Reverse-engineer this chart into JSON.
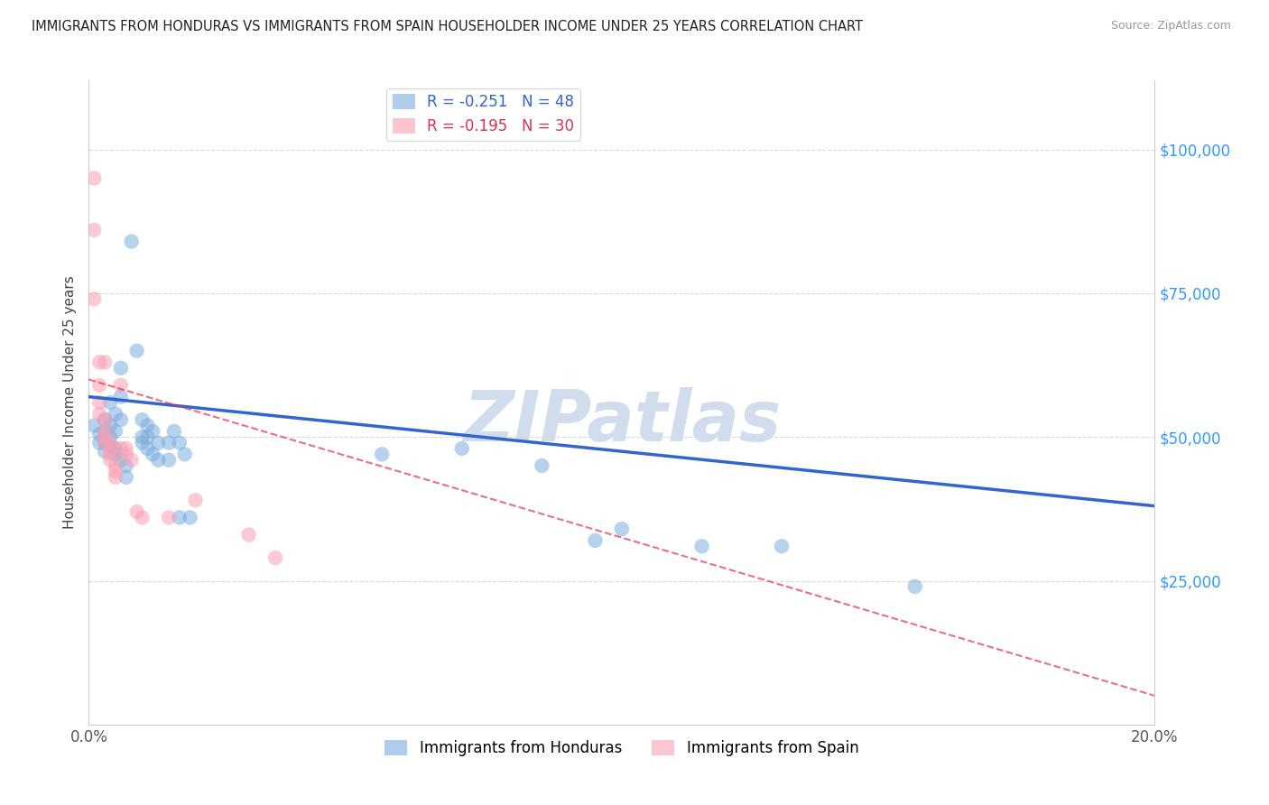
{
  "title": "IMMIGRANTS FROM HONDURAS VS IMMIGRANTS FROM SPAIN HOUSEHOLDER INCOME UNDER 25 YEARS CORRELATION CHART",
  "source": "Source: ZipAtlas.com",
  "ylabel": "Householder Income Under 25 years",
  "xlim": [
    0.0,
    0.2
  ],
  "ylim": [
    0,
    112000
  ],
  "yticks": [
    0,
    25000,
    50000,
    75000,
    100000
  ],
  "ytick_labels": [
    "",
    "$25,000",
    "$50,000",
    "$75,000",
    "$100,000"
  ],
  "xticks": [
    0.0,
    0.05,
    0.1,
    0.15,
    0.2
  ],
  "xtick_labels": [
    "0.0%",
    "",
    "",
    "",
    "20.0%"
  ],
  "background_color": "#ffffff",
  "grid_color": "#d8d8d8",
  "watermark": "ZIPatlas",
  "watermark_color": "#ccdaec",
  "legend_R_honduras": "-0.251",
  "legend_N_honduras": "48",
  "legend_R_spain": "-0.195",
  "legend_N_spain": "30",
  "honduras_color": "#7aaddd",
  "spain_color": "#f9a0b4",
  "honduras_line_color": "#3366cc",
  "spain_line_color": "#dd3355",
  "honduras_line_x": [
    0.0,
    0.2
  ],
  "honduras_line_y": [
    57000,
    38000
  ],
  "spain_line_x": [
    0.0,
    0.2
  ],
  "spain_line_y": [
    60000,
    5000
  ],
  "honduras_scatter": [
    [
      0.001,
      52000
    ],
    [
      0.002,
      50500
    ],
    [
      0.002,
      49000
    ],
    [
      0.003,
      53000
    ],
    [
      0.003,
      51000
    ],
    [
      0.003,
      49000
    ],
    [
      0.003,
      47500
    ],
    [
      0.004,
      56000
    ],
    [
      0.004,
      52000
    ],
    [
      0.004,
      50000
    ],
    [
      0.004,
      48500
    ],
    [
      0.005,
      54000
    ],
    [
      0.005,
      51000
    ],
    [
      0.005,
      48000
    ],
    [
      0.005,
      47000
    ],
    [
      0.006,
      62000
    ],
    [
      0.006,
      57000
    ],
    [
      0.006,
      53000
    ],
    [
      0.006,
      46000
    ],
    [
      0.007,
      45000
    ],
    [
      0.007,
      43000
    ],
    [
      0.008,
      84000
    ],
    [
      0.009,
      65000
    ],
    [
      0.01,
      53000
    ],
    [
      0.01,
      50000
    ],
    [
      0.01,
      49000
    ],
    [
      0.011,
      52000
    ],
    [
      0.011,
      50000
    ],
    [
      0.011,
      48000
    ],
    [
      0.012,
      51000
    ],
    [
      0.012,
      47000
    ],
    [
      0.013,
      49000
    ],
    [
      0.013,
      46000
    ],
    [
      0.015,
      49000
    ],
    [
      0.015,
      46000
    ],
    [
      0.016,
      51000
    ],
    [
      0.017,
      49000
    ],
    [
      0.017,
      36000
    ],
    [
      0.018,
      47000
    ],
    [
      0.019,
      36000
    ],
    [
      0.055,
      47000
    ],
    [
      0.07,
      48000
    ],
    [
      0.085,
      45000
    ],
    [
      0.095,
      32000
    ],
    [
      0.1,
      34000
    ],
    [
      0.115,
      31000
    ],
    [
      0.13,
      31000
    ],
    [
      0.155,
      24000
    ]
  ],
  "spain_scatter": [
    [
      0.001,
      95000
    ],
    [
      0.001,
      86000
    ],
    [
      0.001,
      74000
    ],
    [
      0.002,
      63000
    ],
    [
      0.002,
      59000
    ],
    [
      0.002,
      56000
    ],
    [
      0.002,
      54000
    ],
    [
      0.003,
      63000
    ],
    [
      0.003,
      53000
    ],
    [
      0.003,
      51000
    ],
    [
      0.003,
      50000
    ],
    [
      0.003,
      49000
    ],
    [
      0.004,
      49000
    ],
    [
      0.004,
      48000
    ],
    [
      0.004,
      47000
    ],
    [
      0.004,
      46000
    ],
    [
      0.005,
      45000
    ],
    [
      0.005,
      44000
    ],
    [
      0.005,
      43000
    ],
    [
      0.006,
      59000
    ],
    [
      0.006,
      48000
    ],
    [
      0.007,
      48000
    ],
    [
      0.007,
      47000
    ],
    [
      0.008,
      46000
    ],
    [
      0.009,
      37000
    ],
    [
      0.01,
      36000
    ],
    [
      0.015,
      36000
    ],
    [
      0.02,
      39000
    ],
    [
      0.03,
      33000
    ],
    [
      0.035,
      29000
    ]
  ]
}
